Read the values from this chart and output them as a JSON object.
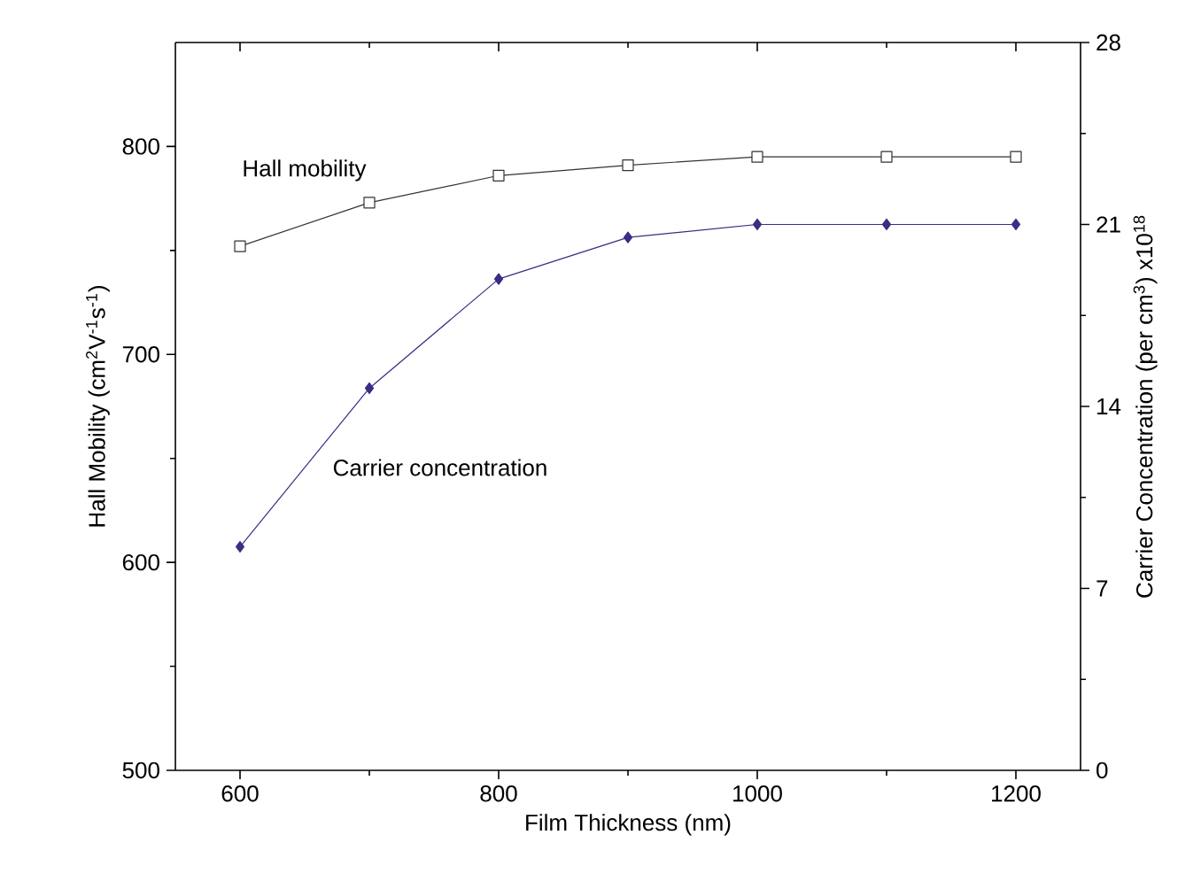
{
  "chart_data": {
    "type": "line",
    "xlabel": "Film Thickness (nm)",
    "ylabel": "Hall Mobility (cm$^{2}$V$^{-1}$s$^{-1}$)",
    "y2label": "Carrier Concentration (per cm$^{3}$) x10$^{18}$",
    "x": [
      600,
      700,
      800,
      900,
      1000,
      1100,
      1200
    ],
    "xlim": [
      550,
      1250
    ],
    "xticks": [
      600,
      800,
      1000,
      1200
    ],
    "ylim": [
      500,
      850
    ],
    "yticks": [
      500,
      600,
      700,
      800
    ],
    "y2lim": [
      0,
      28
    ],
    "y2ticks": [
      0,
      7,
      14,
      21,
      28
    ],
    "series": [
      {
        "name": "Hall mobility",
        "color": "#333333",
        "marker": "square",
        "values": [
          752,
          773,
          786,
          791,
          795,
          795,
          795
        ]
      },
      {
        "name": "Carrier concentration",
        "color": "#3b2c85",
        "marker": "diamond",
        "axis": "y2",
        "values": [
          8.6,
          14.7,
          18.9,
          20.5,
          21.0,
          21.0,
          21.0
        ]
      }
    ]
  }
}
